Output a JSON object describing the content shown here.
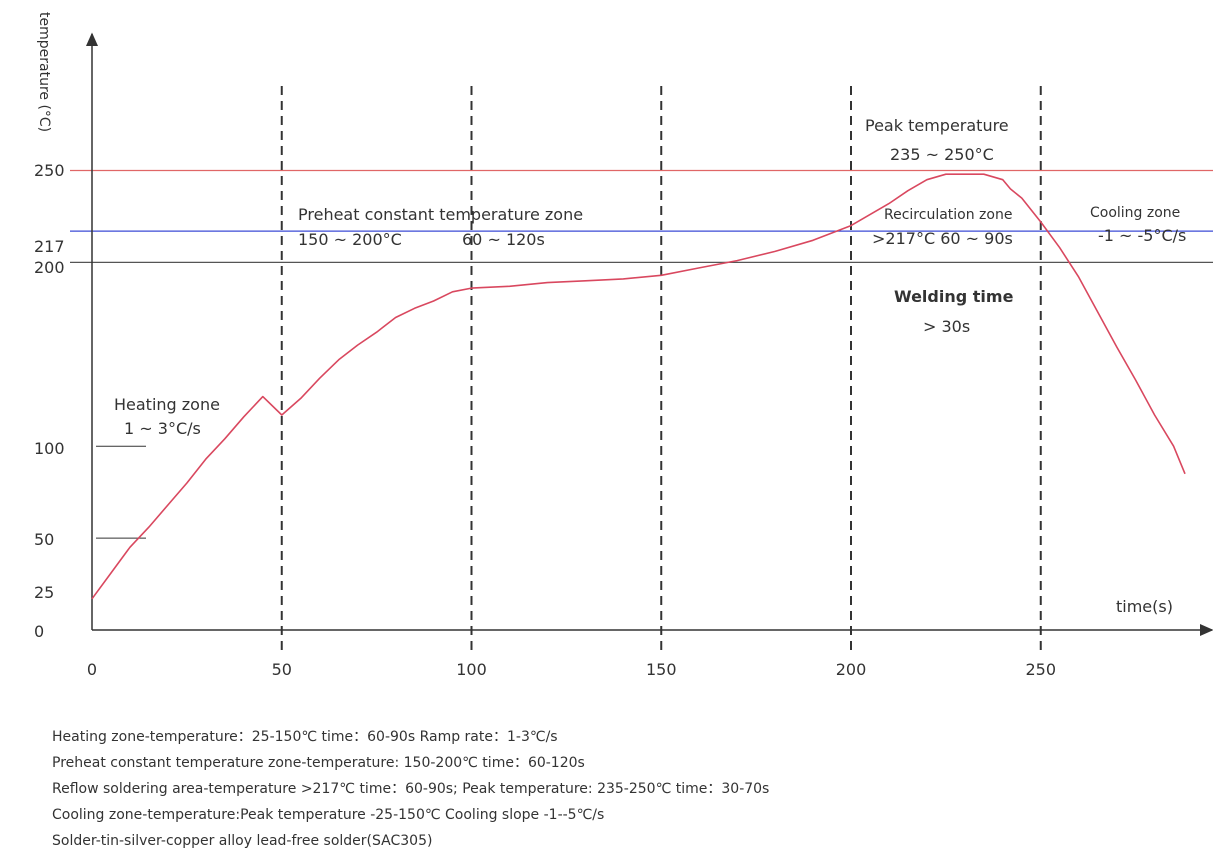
{
  "chart_data": {
    "type": "line",
    "ylabel": "temperature (°C)",
    "xlabel": "time(s)",
    "xlim": [
      0,
      290
    ],
    "ylim": [
      0,
      250
    ],
    "x_ticks": [
      "0",
      "50",
      "100",
      "150",
      "200",
      "250"
    ],
    "x_tick_values": [
      0,
      50,
      100,
      150,
      200,
      250
    ],
    "y_ticks": [
      "0",
      "25",
      "50",
      "100",
      "200",
      "217",
      "250"
    ],
    "y_tick_values": [
      0,
      25,
      50,
      100,
      200,
      217,
      250
    ],
    "zone_boundaries": [
      50,
      100,
      150,
      200,
      250
    ],
    "reference_lines": [
      {
        "value": 250,
        "color": "#e06666"
      },
      {
        "value": 217,
        "color": "#3c4bd6"
      },
      {
        "value": 200,
        "color": "#555555"
      }
    ],
    "series": [
      {
        "color": "#d9485f",
        "x": [
          0,
          5,
          10,
          15,
          20,
          25,
          30,
          35,
          40,
          45,
          50,
          55,
          60,
          65,
          70,
          75,
          80,
          85,
          90,
          95,
          100,
          110,
          120,
          130,
          140,
          150,
          160,
          170,
          180,
          190,
          200,
          210,
          215,
          220,
          225,
          230,
          235,
          240,
          242,
          245,
          250,
          255,
          260,
          265,
          270,
          275,
          280,
          285,
          288
        ],
        "y": [
          17,
          31,
          45,
          56,
          68,
          80,
          93,
          104,
          116,
          127,
          117,
          126,
          137,
          147,
          155,
          162,
          170,
          175,
          179,
          184,
          186,
          187,
          189,
          190,
          191,
          193,
          197,
          201,
          206,
          212,
          220,
          232,
          239,
          245,
          248,
          248,
          248,
          245,
          240,
          235,
          222,
          208,
          192,
          173,
          154,
          136,
          117,
          100,
          85
        ]
      }
    ],
    "annotations": {
      "heating_zone_title": "Heating zone",
      "heating_zone_rate": "1 ~ 3°C/s",
      "preheat_line1": "Preheat constant temperature zone",
      "preheat_temp": "150 ~ 200°C",
      "preheat_time": "60 ~ 120s",
      "peak_title": "Peak temperature",
      "peak_range": "235 ~ 250°C",
      "recirc_title": "Recirculation zone",
      "recirc_detail": ">217°C  60 ~ 90s",
      "cooling_title": "Cooling zone",
      "cooling_rate": "-1 ~ -5°C/s",
      "welding_title": "Welding time",
      "welding_value": "> 30s"
    }
  },
  "notes": [
    "Heating zone-temperature：25-150℃  time：60-90s Ramp rate：1-3℃/s",
    "Preheat constant temperature zone-temperature: 150-200℃  time：60-120s",
    "Reflow soldering area-temperature >217℃ time：60-90s; Peak temperature: 235-250℃    time：30-70s",
    "Cooling zone-temperature:Peak temperature -25-150℃ Cooling slope -1--5℃/s",
    "Solder-tin-silver-copper alloy lead-free solder(SAC305)"
  ]
}
